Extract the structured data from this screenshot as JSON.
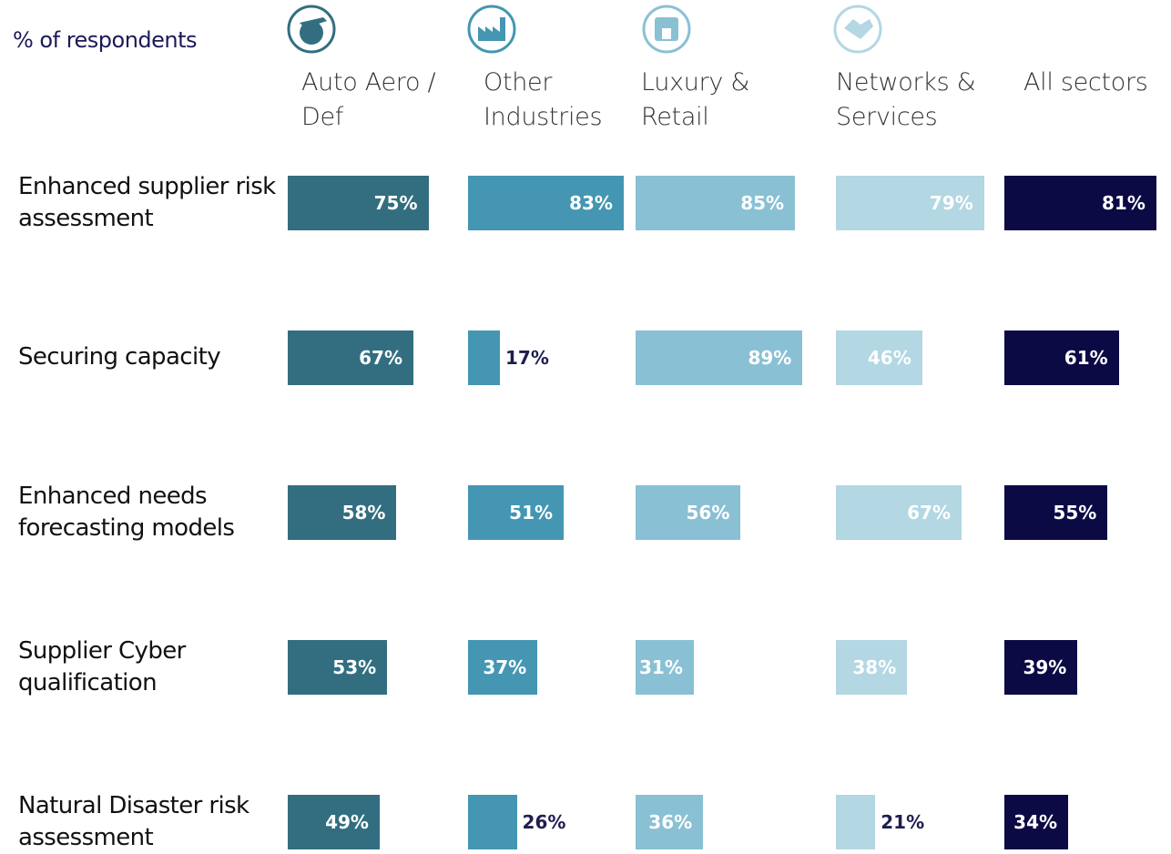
{
  "chart_data": {
    "type": "bar",
    "orientation": "horizontal",
    "subtitle": "% of respondents",
    "categories": [
      "Enhanced supplier risk assessment",
      "Securing capacity",
      "Enhanced needs forecasting models",
      "Supplier Cyber qualification",
      "Natural Disaster risk assessment"
    ],
    "xlim": [
      0,
      100
    ],
    "series": [
      {
        "name": "Auto Aero / Def",
        "color": "#326e80",
        "values": [
          75,
          67,
          58,
          53,
          49
        ],
        "value_labels": [
          "75%",
          "67%",
          "58%",
          "53%",
          "49%"
        ]
      },
      {
        "name": "Other Industries",
        "color": "#4496b2",
        "values": [
          83,
          17,
          51,
          37,
          26
        ],
        "value_labels": [
          "83%",
          "17%",
          "51%",
          "37%",
          "26%"
        ]
      },
      {
        "name": "Luxury & Retail",
        "color": "#8ac0d4",
        "values": [
          85,
          89,
          56,
          31,
          36
        ],
        "value_labels": [
          "85%",
          "89%",
          "56%",
          "31%",
          "36%"
        ]
      },
      {
        "name": "Networks & Services",
        "color": "#b3d7e3",
        "values": [
          79,
          46,
          67,
          38,
          21
        ],
        "value_labels": [
          "79%",
          "46%",
          "67%",
          "38%",
          "21%"
        ]
      },
      {
        "name": "All sectors",
        "color": "#0b0a45",
        "values": [
          81,
          61,
          55,
          39,
          34
        ],
        "value_labels": [
          "81%",
          "61%",
          "55%",
          "39%",
          "34%"
        ]
      }
    ]
  }
}
